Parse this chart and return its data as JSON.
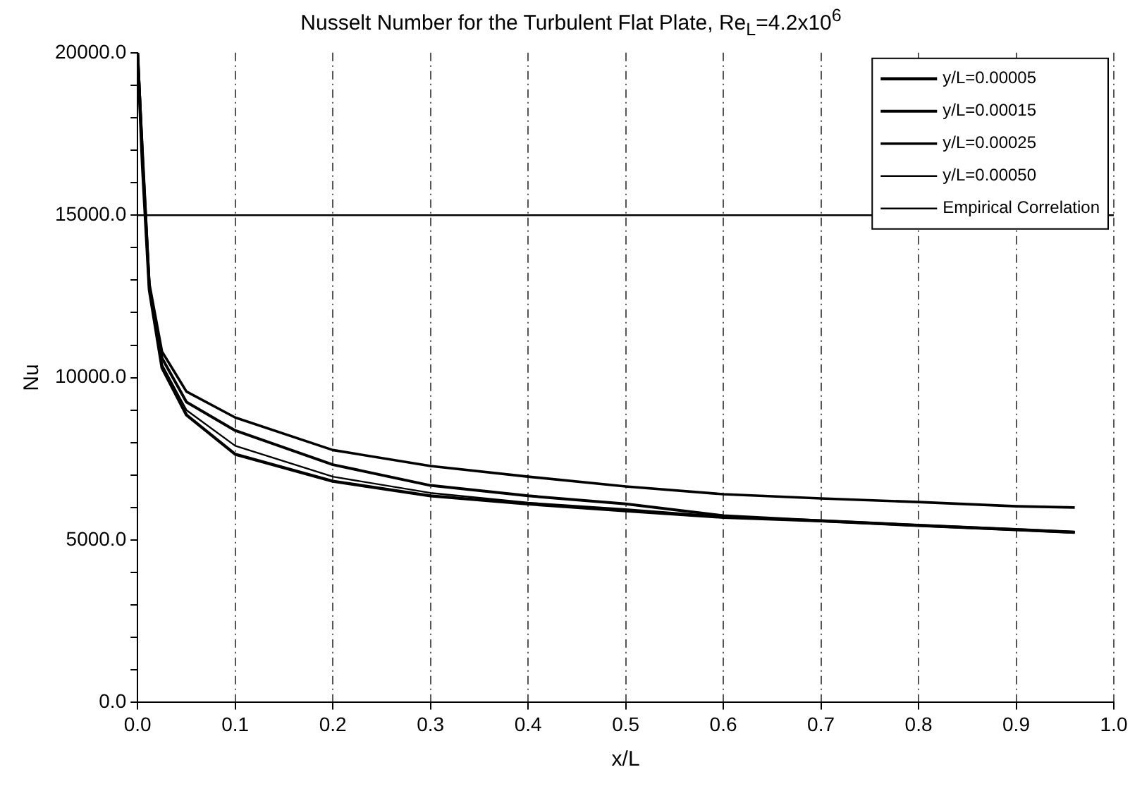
{
  "chart_data": {
    "type": "line",
    "title": "Nusselt Number for the Turbulent Flat Plate, Re$_{L}$=4.2x10$^{6}$",
    "xlabel": "x/L",
    "ylabel": "Nu",
    "xlim": [
      0,
      1
    ],
    "xticks": [
      {
        "value": 0,
        "label": "0.0"
      },
      {
        "value": 0.1,
        "label": "0.1"
      },
      {
        "value": 0.2,
        "label": "0.2"
      },
      {
        "value": 0.3,
        "label": "0.3"
      },
      {
        "value": 0.4,
        "label": "0.4"
      },
      {
        "value": 0.5,
        "label": "0.5"
      },
      {
        "value": 0.6,
        "label": "0.6"
      },
      {
        "value": 0.7,
        "label": "0.7"
      },
      {
        "value": 0.8,
        "label": "0.8"
      },
      {
        "value": 0.9,
        "label": "0.9"
      },
      {
        "value": 1,
        "label": "1.0"
      }
    ],
    "ylim": [
      0,
      20000
    ],
    "yticks": [
      {
        "value": 0,
        "label": "0.0"
      },
      {
        "value": 1000,
        "label": null
      },
      {
        "value": 2000,
        "label": null
      },
      {
        "value": 3000,
        "label": null
      },
      {
        "value": 4000,
        "label": null
      },
      {
        "value": 5000,
        "label": "5000.0"
      },
      {
        "value": 6000,
        "label": null
      },
      {
        "value": 7000,
        "label": null
      },
      {
        "value": 8000,
        "label": null
      },
      {
        "value": 9000,
        "label": null
      },
      {
        "value": 10000,
        "label": "10000.0"
      },
      {
        "value": 11000,
        "label": null
      },
      {
        "value": 12000,
        "label": null
      },
      {
        "value": 13000,
        "label": null
      },
      {
        "value": 14000,
        "label": null
      },
      {
        "value": 15000,
        "label": "15000.0"
      },
      {
        "value": 16000,
        "label": null
      },
      {
        "value": 17000,
        "label": null
      },
      {
        "value": 18000,
        "label": null
      },
      {
        "value": 19000,
        "label": null
      },
      {
        "value": 20000,
        "label": "20000.0"
      }
    ],
    "grid": "x",
    "legend": "top right",
    "marker": "none",
    "line_style": "solid",
    "series": [
      {
        "name": "y/L=0.00005",
        "color": "#000000",
        "x": [
          0,
          0.005,
          0.012,
          0.025,
          0.05,
          0.1,
          0.2,
          0.3,
          0.4,
          0.5,
          0.6,
          0.7,
          0.8,
          0.9,
          0.96
        ],
        "values": [
          20000,
          16500,
          12700,
          10300,
          8850,
          7640,
          6810,
          6360,
          6110,
          5900,
          5700,
          5590,
          5450,
          5320,
          5240
        ]
      },
      {
        "name": "y/L=0.00015",
        "color": "#000000",
        "x": [
          0,
          0.005,
          0.012,
          0.025,
          0.05,
          0.1,
          0.2,
          0.3,
          0.4,
          0.5,
          0.6,
          0.7,
          0.8,
          0.9,
          0.96
        ],
        "values": [
          20000,
          16800,
          12800,
          10600,
          9250,
          8370,
          7320,
          6680,
          6360,
          6110,
          5750,
          5590,
          5450,
          5320,
          5240
        ]
      },
      {
        "name": "y/L=0.00025",
        "color": "#000000",
        "x": [
          0,
          0.005,
          0.012,
          0.025,
          0.05,
          0.1,
          0.2,
          0.3,
          0.4,
          0.5,
          0.6,
          0.7,
          0.8,
          0.9,
          0.96
        ],
        "values": [
          20000,
          17000,
          12900,
          10800,
          9570,
          8770,
          7770,
          7280,
          6950,
          6650,
          6410,
          6280,
          6170,
          6040,
          6000
        ]
      },
      {
        "name": "y/L=0.00050",
        "color": "#000000",
        "x": [
          0,
          0.005,
          0.012,
          0.025,
          0.05,
          0.1,
          0.2,
          0.3,
          0.4,
          0.5,
          0.6,
          0.7,
          0.8,
          0.9,
          0.96
        ],
        "values": [
          20000,
          16600,
          12750,
          10400,
          9000,
          7900,
          6950,
          6450,
          6150,
          5950,
          5720,
          5590,
          5450,
          5320,
          5240
        ]
      },
      {
        "name": "Empirical Correlation",
        "color": "#000000",
        "x": [
          0,
          1
        ],
        "values": [
          15000,
          15000
        ]
      }
    ]
  }
}
